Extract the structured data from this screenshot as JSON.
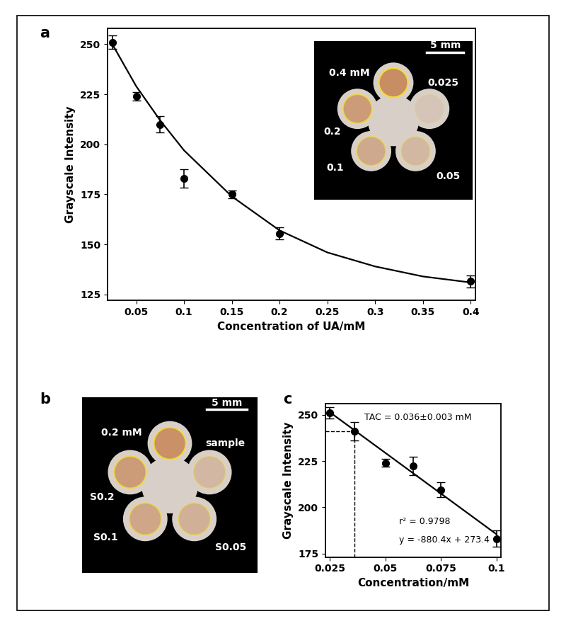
{
  "chart_data": [
    {
      "panel": "a",
      "type": "scatter",
      "x_label": "Concentration of UA/mM",
      "y_label": "Grayscale Intensity",
      "xlim": [
        0.02,
        0.405
      ],
      "xticks": [
        0.05,
        0.1,
        0.15,
        0.2,
        0.25,
        0.3,
        0.35,
        0.4
      ],
      "ylim": [
        122,
        258
      ],
      "yticks": [
        125,
        150,
        175,
        200,
        225,
        250
      ],
      "series": [
        {
          "type": "scatter",
          "color": "#000000",
          "marker": "o",
          "x": [
            0.025,
            0.05,
            0.075,
            0.1,
            0.15,
            0.2,
            0.4
          ],
          "values": [
            251,
            224,
            210,
            183,
            175,
            155.5,
            131.5
          ],
          "error": [
            3.5,
            2,
            4,
            4.5,
            2,
            3,
            3
          ]
        },
        {
          "type": "line",
          "color": "#000000",
          "line_style": "solid",
          "x": [
            0.025,
            0.05,
            0.075,
            0.1,
            0.15,
            0.2,
            0.25,
            0.3,
            0.35,
            0.4
          ],
          "values": [
            250,
            229,
            212,
            197,
            174,
            157,
            146,
            139,
            134,
            131
          ]
        }
      ],
      "inset": {
        "labels": [
          "0.4 mM",
          "0.025",
          "0.05",
          "0.1",
          "0.2"
        ],
        "scale_bar": "5 mm"
      }
    },
    {
      "panel": "b",
      "type": "image",
      "labels": [
        "0.2 mM",
        "sample",
        "S0.05",
        "S0.1",
        "S0.2"
      ],
      "scale_bar": "5 mm"
    },
    {
      "panel": "c",
      "type": "scatter",
      "x_label": "Concentration/mM",
      "y_label": "Grayscale Intensity",
      "xlim": [
        0.023,
        0.102
      ],
      "xticks": [
        0.025,
        0.05,
        0.075,
        0.1
      ],
      "ylim": [
        173,
        256
      ],
      "yticks": [
        175,
        200,
        225,
        250
      ],
      "series": [
        {
          "type": "scatter",
          "color": "#000000",
          "marker": "o",
          "x": [
            0.025,
            0.036,
            0.05,
            0.0625,
            0.075,
            0.1
          ],
          "values": [
            251,
            241,
            224,
            222.5,
            209.5,
            183
          ],
          "error": [
            3,
            5,
            2,
            5,
            4,
            4.5
          ]
        },
        {
          "type": "line",
          "color": "#000000",
          "line_style": "solid",
          "x": [
            0.025,
            0.1
          ],
          "values": [
            251.4,
            185.4
          ]
        }
      ],
      "guide": {
        "x": 0.036,
        "y": 241
      },
      "annotations": {
        "tac": "TAC = 0.036±0.003 mM",
        "r2": "r² = 0.9798",
        "equation": "y = -880.4x + 273.4"
      }
    }
  ]
}
